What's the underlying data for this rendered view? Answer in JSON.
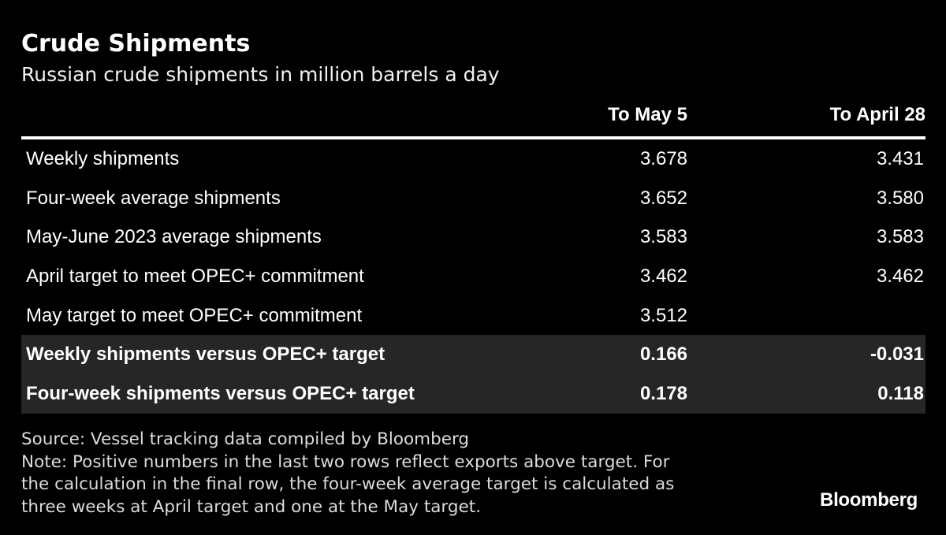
{
  "chart_data": {
    "type": "table",
    "title": "Crude Shipments",
    "subtitle": "Russian crude shipments in million barrels a day",
    "columns": [
      "To May 5",
      "To April 28"
    ],
    "rows": [
      {
        "label": "Weekly shipments",
        "values": [
          "3.678",
          "3.431"
        ],
        "highlight": false
      },
      {
        "label": "Four-week average shipments",
        "values": [
          "3.652",
          "3.580"
        ],
        "highlight": false
      },
      {
        "label": "May-June 2023 average shipments",
        "values": [
          "3.583",
          "3.583"
        ],
        "highlight": false
      },
      {
        "label": "April target to meet OPEC+ commitment",
        "values": [
          "3.462",
          "3.462"
        ],
        "highlight": false
      },
      {
        "label": "May target to meet OPEC+ commitment",
        "values": [
          "3.512",
          ""
        ],
        "highlight": false
      },
      {
        "label": "Weekly shipments versus OPEC+ target",
        "values": [
          "0.166",
          "-0.031"
        ],
        "highlight": true
      },
      {
        "label": "Four-week shipments versus OPEC+ target",
        "values": [
          "0.178",
          "0.118"
        ],
        "highlight": true
      }
    ]
  },
  "footer": {
    "source_lines": [
      "Source: Vessel tracking data compiled by Bloomberg",
      "Note: Positive numbers in the last two rows reflect exports above target. For",
      "the calculation in the final row, the four-week average target is calculated as",
      "three weeks at April target and one at the May target."
    ],
    "brand": "Bloomberg"
  },
  "colors": {
    "background": "#000000",
    "text": "#ffffff",
    "highlight_row": "#262626"
  }
}
